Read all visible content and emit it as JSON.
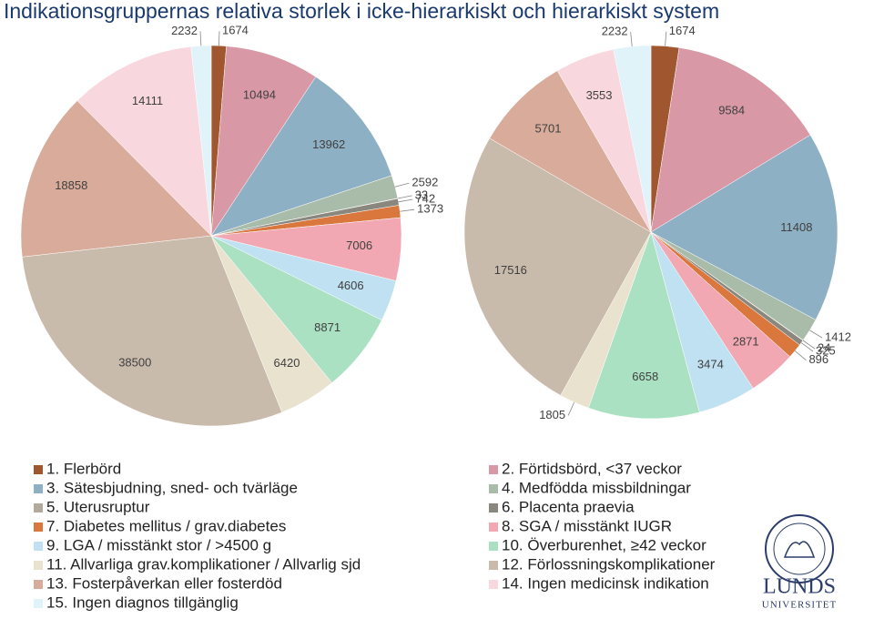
{
  "chart_data": {
    "type": "pie",
    "title": "Indikationsgruppernas relativa storlek i icke-hierarkiskt och hierarkiskt system",
    "categories": [
      "1. Flerbörd",
      "2. Förtidsbörd, <37 veckor",
      "3. Sätesbjudning, sned- och tvärläge",
      "4. Medfödda missbildningar",
      "5. Uterusruptur",
      "6. Placenta praevia",
      "7. Diabetes mellitus / grav.diabetes",
      "8. SGA / misstänkt IUGR",
      "9. LGA / misstänkt stor / >4500 g",
      "10. Överburenhet, ≥42 veckor",
      "11. Allvarliga grav.komplikationer / Allvarlig sjd",
      "12. Förlossningskomplikationer",
      "13. Fosterpåverkan eller fosterdöd",
      "14. Ingen medicinsk indikation",
      "15. Ingen diagnos tillgänglig"
    ],
    "colors": [
      "#a0562e",
      "#d898a6",
      "#8eb0c4",
      "#a9bcaa",
      "#b3aa9c",
      "#8a877e",
      "#d9773c",
      "#f2a8b2",
      "#bfe1f1",
      "#a9e1c2",
      "#e9e2cf",
      "#c9bbab",
      "#d8ab9a",
      "#f8d8de",
      "#dff3f8"
    ],
    "series": [
      {
        "values": [
          1674,
          10494,
          13962,
          2592,
          33,
          742,
          1373,
          7006,
          4606,
          8871,
          6420,
          38500,
          18858,
          14111,
          2232
        ]
      },
      {
        "values": [
          1674,
          9584,
          11408,
          1412,
          24,
          325,
          896,
          2871,
          3474,
          6658,
          1805,
          17516,
          5701,
          3553,
          2232
        ]
      }
    ]
  },
  "logo": {
    "name": "LUNDS",
    "subname": "UNIVERSITET"
  }
}
